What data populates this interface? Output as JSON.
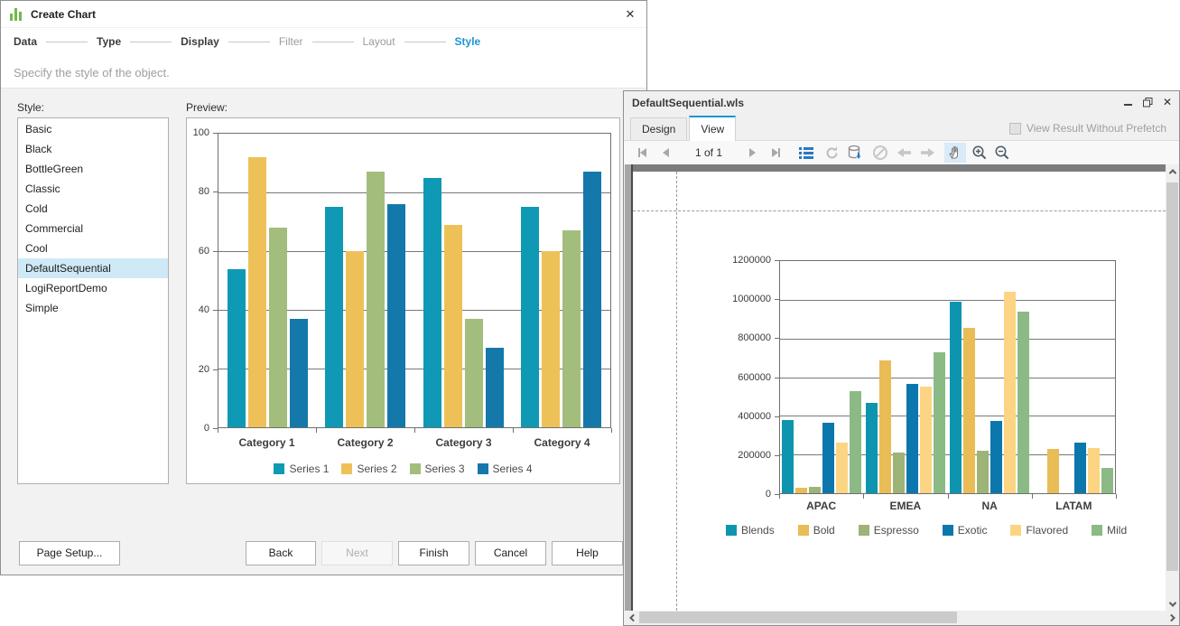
{
  "wizard": {
    "title": "Create Chart",
    "steps": [
      {
        "label": "Data",
        "state": "done"
      },
      {
        "label": "Type",
        "state": "done"
      },
      {
        "label": "Display",
        "state": "done"
      },
      {
        "label": "Filter",
        "state": "pending"
      },
      {
        "label": "Layout",
        "state": "pending"
      },
      {
        "label": "Style",
        "state": "active"
      }
    ],
    "subtitle": "Specify the style of the object.",
    "style_label": "Style:",
    "preview_label": "Preview:",
    "styles": [
      "Basic",
      "Black",
      "BottleGreen",
      "Classic",
      "Cold",
      "Commercial",
      "Cool",
      "DefaultSequential",
      "LogiReportDemo",
      "Simple"
    ],
    "selected_style": "DefaultSequential",
    "buttons": {
      "page_setup": "Page Setup...",
      "back": "Back",
      "next": "Next",
      "finish": "Finish",
      "cancel": "Cancel",
      "help": "Help"
    }
  },
  "viewer": {
    "title": "DefaultSequential.wls",
    "tabs": {
      "design": "Design",
      "view": "View"
    },
    "active_tab": "View",
    "prefetch_label": "View Result Without Prefetch",
    "toolbar": {
      "page_indicator": "1 of 1"
    }
  },
  "colors": {
    "accent_blue": "#1b96d2",
    "selection_bg": "#cfe9f7",
    "toolbar_icon_blue": "#2779c4",
    "disabled_icon_gray": "#bdbdbd"
  },
  "chart_data": [
    {
      "type": "bar",
      "title": "",
      "categories": [
        "Category 1",
        "Category 2",
        "Category 3",
        "Category 4"
      ],
      "series": [
        {
          "name": "Series 1",
          "color": "#0f99b4",
          "values": [
            54,
            75,
            85,
            75
          ]
        },
        {
          "name": "Series 2",
          "color": "#eec158",
          "values": [
            92,
            60,
            69,
            60
          ]
        },
        {
          "name": "Series 3",
          "color": "#a3bd7c",
          "values": [
            68,
            87,
            37,
            67
          ]
        },
        {
          "name": "Series 4",
          "color": "#1478ab",
          "values": [
            37,
            76,
            27,
            87
          ]
        }
      ],
      "xlabel": "",
      "ylabel": "",
      "ylim": [
        0,
        100
      ],
      "ytick_step": 20,
      "grid": true,
      "legend_position": "bottom-center"
    },
    {
      "type": "bar",
      "title": "",
      "categories": [
        "APAC",
        "EMEA",
        "NA",
        "LATAM"
      ],
      "series": [
        {
          "name": "Blends",
          "color": "#0d95b0",
          "values": [
            380000,
            465000,
            990000,
            0
          ]
        },
        {
          "name": "Bold",
          "color": "#e9bc55",
          "values": [
            30000,
            685000,
            855000,
            230000
          ]
        },
        {
          "name": "Espresso",
          "color": "#9eb377",
          "values": [
            35000,
            210000,
            220000,
            0
          ]
        },
        {
          "name": "Exotic",
          "color": "#0b77ad",
          "values": [
            365000,
            565000,
            375000,
            260000
          ]
        },
        {
          "name": "Flavored",
          "color": "#fbd584",
          "values": [
            260000,
            550000,
            1040000,
            235000
          ]
        },
        {
          "name": "Mild",
          "color": "#8cba85",
          "values": [
            530000,
            730000,
            940000,
            130000
          ]
        }
      ],
      "xlabel": "",
      "ylabel": "",
      "ylim": [
        0,
        1200000
      ],
      "ytick_step": 200000,
      "grid": true,
      "legend_position": "bottom-left"
    }
  ]
}
